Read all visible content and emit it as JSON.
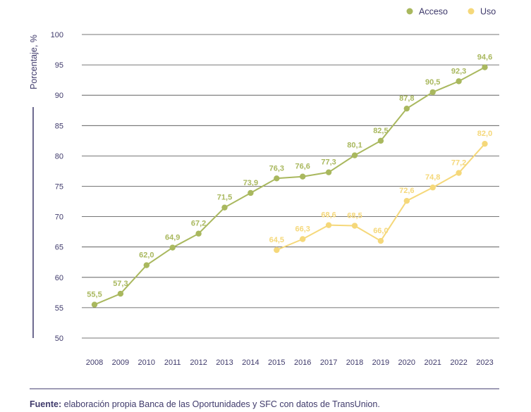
{
  "chart_data": {
    "type": "line",
    "x": [
      "2008",
      "2009",
      "2010",
      "2011",
      "2012",
      "2013",
      "2014",
      "2015",
      "2016",
      "2017",
      "2018",
      "2019",
      "2020",
      "2021",
      "2022",
      "2023"
    ],
    "ylabel": "Porcentaje, %",
    "ylim": [
      50,
      100
    ],
    "yticks": [
      "50",
      "55",
      "60",
      "65",
      "70",
      "75",
      "80",
      "85",
      "90",
      "95",
      "100"
    ],
    "grid": true,
    "legend_position": "top-right",
    "series": [
      {
        "name": "Acceso",
        "color": "#a9b85e",
        "values": [
          55.5,
          57.3,
          62.0,
          64.9,
          67.2,
          71.5,
          73.9,
          76.3,
          76.6,
          77.3,
          80.1,
          82.5,
          87.8,
          90.5,
          92.3,
          94.6
        ],
        "labels": [
          "55,5",
          "57,3",
          "62,0",
          "64,9",
          "67,2",
          "71,5",
          "73,9",
          "76,3",
          "76,6",
          "77,3",
          "80,1",
          "82,5",
          "87,8",
          "90,5",
          "92,3",
          "94,6"
        ]
      },
      {
        "name": "Uso",
        "color": "#f5d87a",
        "values": [
          null,
          null,
          null,
          null,
          null,
          null,
          null,
          64.5,
          66.3,
          68.6,
          68.5,
          66.0,
          72.6,
          74.8,
          77.2,
          82.0
        ],
        "labels": [
          "",
          "",
          "",
          "",
          "",
          "",
          "",
          "64,5",
          "66,3",
          "68,6",
          "68,5",
          "66,0",
          "72,6",
          "74,8",
          "77,2",
          "82,0"
        ]
      }
    ]
  },
  "source": {
    "label": "Fuente:",
    "text": " elaboración propia Banca de las Oportunidades y SFC con datos de TransUnion."
  }
}
